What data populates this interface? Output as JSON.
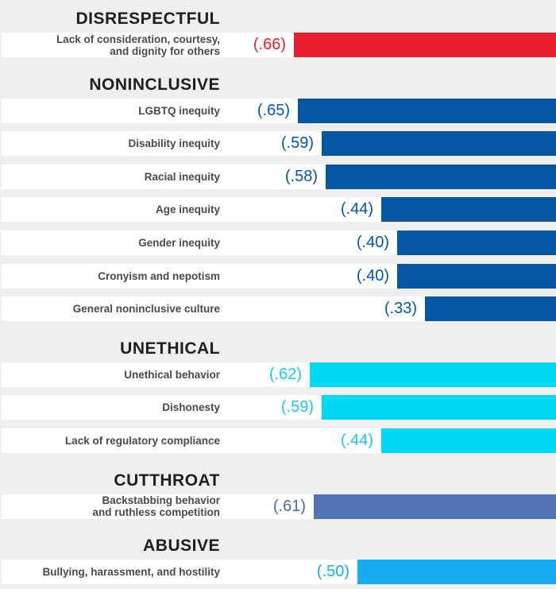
{
  "chart_data": {
    "type": "bar",
    "orientation": "horizontal",
    "xlim": [
      0,
      1
    ],
    "groups": [
      {
        "title": "DISRESPECTFUL",
        "color": "#e8202e",
        "label_color": "#e8202e",
        "items": [
          {
            "label": "Lack of consideration, courtesy,\nand dignity for others",
            "value": 0.66,
            "value_label": "(.66)"
          }
        ]
      },
      {
        "title": "NONINCLUSIVE",
        "color": "#0556a3",
        "label_color": "#0556a3",
        "items": [
          {
            "label": "LGBTQ inequity",
            "value": 0.65,
            "value_label": "(.65)"
          },
          {
            "label": "Disability inequity",
            "value": 0.59,
            "value_label": "(.59)"
          },
          {
            "label": "Racial inequity",
            "value": 0.58,
            "value_label": "(.58)"
          },
          {
            "label": "Age inequity",
            "value": 0.44,
            "value_label": "(.44)"
          },
          {
            "label": "Gender inequity",
            "value": 0.4,
            "value_label": "(.40)"
          },
          {
            "label": "Cronyism and nepotism",
            "value": 0.4,
            "value_label": "(.40)"
          },
          {
            "label": "General noninclusive culture",
            "value": 0.33,
            "value_label": "(.33)"
          }
        ]
      },
      {
        "title": "UNETHICAL",
        "color": "#00d9f5",
        "label_color": "#1ec6ec",
        "items": [
          {
            "label": "Unethical behavior",
            "value": 0.62,
            "value_label": "(.62)"
          },
          {
            "label": "Dishonesty",
            "value": 0.59,
            "value_label": "(.59)"
          },
          {
            "label": "Lack of regulatory compliance",
            "value": 0.44,
            "value_label": "(.44)"
          }
        ]
      },
      {
        "title": "CUTTHROAT",
        "color": "#5276b4",
        "label_color": "#4a6aa8",
        "items": [
          {
            "label": "Backstabbing behavior\nand ruthless competition",
            "value": 0.61,
            "value_label": "(.61)"
          }
        ]
      },
      {
        "title": "ABUSIVE",
        "color": "#16adf2",
        "label_color": "#16adf2",
        "items": [
          {
            "label": "Bullying, harassment, and hostility",
            "value": 0.5,
            "value_label": "(.50)"
          }
        ]
      }
    ]
  }
}
